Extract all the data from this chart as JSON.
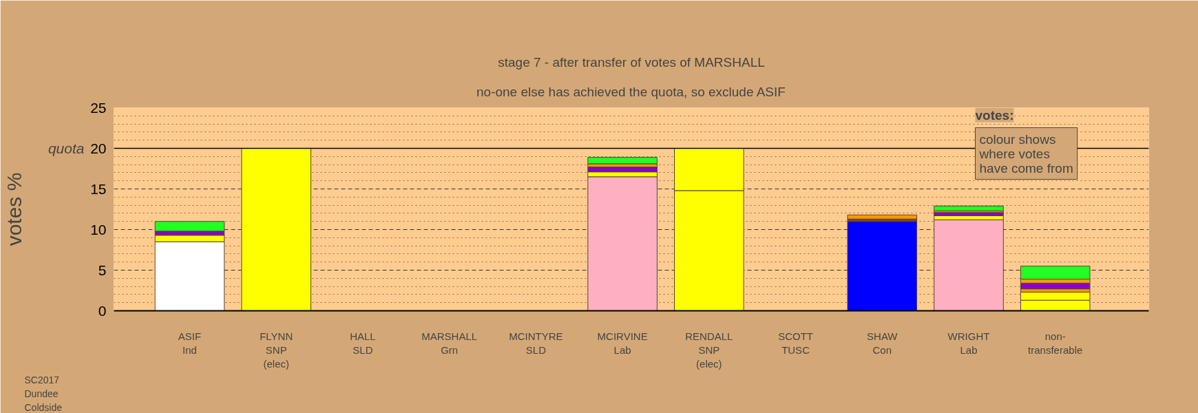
{
  "chart_data": {
    "type": "bar",
    "stacked": true,
    "title": "stage 7 - after transfer of votes of MARSHALL",
    "subtitle": "no-one else has achieved the quota, so exclude ASIF",
    "ylabel": "votes %",
    "categories": [
      "ASIF\nInd",
      "FLYNN\nSNP\n(elec)",
      "HALL\nSLD",
      "MARSHALL\nGrn",
      "MCINTYRE\nSLD",
      "MCIRVINE\nLab",
      "RENDALL\nSNP\n(elec)",
      "SCOTT\nTUSC",
      "SHAW\nCon",
      "WRIGHT\nLab",
      "non-\ntransferable"
    ],
    "series": [
      {
        "color": "#ffffff",
        "values": [
          8.5,
          null,
          null,
          null,
          null,
          null,
          null,
          null,
          null,
          null,
          null
        ]
      },
      {
        "color": "#ffb0c0",
        "values": [
          null,
          null,
          null,
          null,
          null,
          16.5,
          null,
          null,
          null,
          11.2,
          null
        ]
      },
      {
        "color": "#0000ff",
        "values": [
          null,
          null,
          null,
          null,
          null,
          null,
          null,
          null,
          11.0,
          null,
          null
        ]
      },
      {
        "color": "#ffff00",
        "values": [
          null,
          20,
          null,
          null,
          null,
          null,
          14.8,
          null,
          null,
          null,
          1.3
        ]
      },
      {
        "color": "#ffff00",
        "values": [
          0.8,
          null,
          null,
          null,
          null,
          0.6,
          5.2,
          null,
          null,
          0.5,
          1.0
        ]
      },
      {
        "color": "#ff9900",
        "values": [
          null,
          null,
          null,
          null,
          null,
          null,
          null,
          null,
          null,
          null,
          0.4
        ]
      },
      {
        "color": "#8b4513",
        "values": [
          null,
          null,
          null,
          null,
          null,
          null,
          null,
          null,
          0.3,
          null,
          null
        ]
      },
      {
        "color": "#8800cc",
        "values": [
          0.5,
          null,
          null,
          null,
          null,
          0.6,
          null,
          null,
          null,
          0.4,
          0.7
        ]
      },
      {
        "color": "#ff9900",
        "values": [
          null,
          null,
          null,
          null,
          null,
          0.4,
          null,
          null,
          0.5,
          0.2,
          0.5
        ]
      },
      {
        "color": "#22ff22",
        "values": [
          1.2,
          null,
          null,
          null,
          null,
          0.8,
          null,
          null,
          null,
          0.6,
          1.6
        ]
      }
    ],
    "ylim": [
      0,
      25
    ],
    "yticks": [
      0,
      {
        "value": 1,
        "label": null
      },
      {
        "value": 2,
        "label": null
      },
      {
        "value": 3,
        "label": null
      },
      {
        "value": 4,
        "label": null
      },
      5,
      {
        "value": 6,
        "label": null
      },
      {
        "value": 7,
        "label": null
      },
      {
        "value": 8,
        "label": null
      },
      {
        "value": 9,
        "label": null
      },
      10,
      {
        "value": 11,
        "label": null
      },
      {
        "value": 12,
        "label": null
      },
      {
        "value": 13,
        "label": null
      },
      {
        "value": 14,
        "label": null
      },
      15,
      {
        "value": 16,
        "label": null
      },
      {
        "value": 17,
        "label": null
      },
      {
        "value": 18,
        "label": null
      },
      {
        "value": 19,
        "label": null
      },
      20,
      {
        "value": 21,
        "label": null
      },
      {
        "value": 22,
        "label": null
      },
      {
        "value": 23,
        "label": null
      },
      {
        "value": 24,
        "label": null
      },
      25
    ],
    "grid": "y",
    "ref_lines": [
      {
        "axis": "y",
        "value": 20,
        "label": "quota"
      }
    ],
    "annotations": [
      "votes:",
      "colour shows\nwhere votes\nhave come from",
      "SC2017",
      "Dundee",
      "Coldside"
    ]
  }
}
